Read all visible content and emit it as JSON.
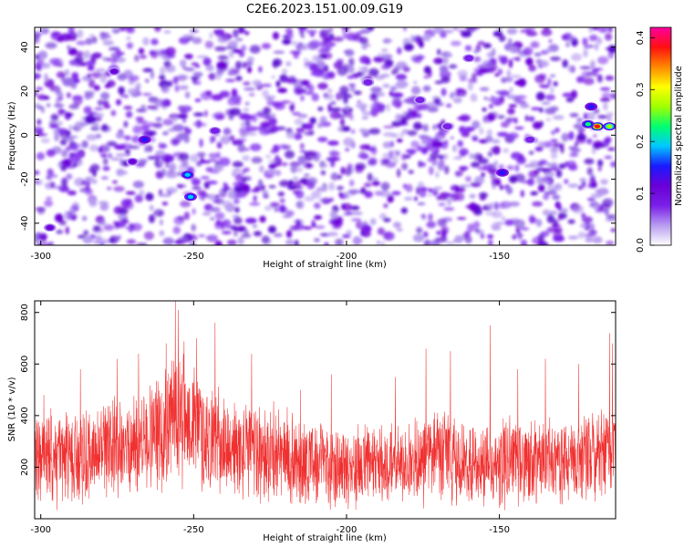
{
  "title": "C2E6.2023.151.00.09.G19",
  "colors": {
    "snr_line": "#f03030",
    "colormap": [
      "#ffffff",
      "#b89cf0",
      "#7a1fe8",
      "#6a00d8",
      "#1a1aff",
      "#00c8ff",
      "#00ff70",
      "#a0ff00",
      "#ffff00",
      "#ff8800",
      "#ff1010",
      "#ff00a0"
    ]
  },
  "chart_data": [
    {
      "type": "heatmap",
      "xlabel": "Height of straight line (km)",
      "ylabel": "Frequency (Hz)",
      "xlim": [
        -302,
        -112
      ],
      "ylim": [
        -50,
        49
      ],
      "xticks": [
        -300,
        -250,
        -200,
        -150
      ],
      "yticks": [
        -40,
        -20,
        0,
        20,
        40
      ],
      "colorbar": {
        "label": "Normalized spectral amplitude",
        "range": [
          0,
          0.42
        ],
        "ticks": [
          0.0,
          0.1,
          0.2,
          0.3,
          0.4
        ],
        "tick_labels": [
          "0.0",
          "0.1",
          "0.2",
          "0.3",
          "0.4"
        ]
      },
      "hotspots": [
        {
          "x": -118,
          "y": 4,
          "value": 0.38
        },
        {
          "x": -114,
          "y": 4,
          "value": 0.26
        },
        {
          "x": -121,
          "y": 5,
          "value": 0.22
        },
        {
          "x": -252,
          "y": -18,
          "value": 0.2
        },
        {
          "x": -251,
          "y": -28,
          "value": 0.18
        },
        {
          "x": -149,
          "y": -17,
          "value": 0.16
        },
        {
          "x": -266,
          "y": -2,
          "value": 0.15
        },
        {
          "x": -120,
          "y": 13,
          "value": 0.15
        },
        {
          "x": -276,
          "y": 29,
          "value": 0.12
        },
        {
          "x": -297,
          "y": -42,
          "value": 0.1
        },
        {
          "x": -270,
          "y": -12,
          "value": 0.1
        },
        {
          "x": -193,
          "y": 24,
          "value": 0.09
        },
        {
          "x": -176,
          "y": 16,
          "value": 0.09
        },
        {
          "x": -167,
          "y": 4,
          "value": 0.09
        },
        {
          "x": -160,
          "y": 35,
          "value": 0.09
        },
        {
          "x": -140,
          "y": -2,
          "value": 0.09
        },
        {
          "x": -243,
          "y": 2,
          "value": 0.09
        }
      ]
    },
    {
      "type": "line",
      "name": "",
      "xlabel": "Height of straight line (km)",
      "ylabel": "SNR (10 * v/v)",
      "xlim": [
        -302,
        -112
      ],
      "ylim": [
        0,
        845
      ],
      "xticks": [
        -300,
        -250,
        -200,
        -150
      ],
      "yticks": [
        200,
        400,
        600,
        800
      ],
      "envelope": {
        "x": [
          -302,
          -295,
          -290,
          -285,
          -280,
          -275,
          -270,
          -265,
          -260,
          -257,
          -255,
          -253,
          -250,
          -247,
          -245,
          -240,
          -235,
          -230,
          -225,
          -220,
          -215,
          -210,
          -205,
          -200,
          -195,
          -190,
          -185,
          -180,
          -175,
          -170,
          -165,
          -160,
          -155,
          -150,
          -145,
          -140,
          -135,
          -130,
          -125,
          -120,
          -116,
          -112
        ],
        "high": [
          400,
          420,
          400,
          430,
          440,
          460,
          470,
          520,
          580,
          640,
          700,
          660,
          600,
          560,
          520,
          470,
          440,
          460,
          440,
          420,
          400,
          380,
          380,
          360,
          360,
          370,
          380,
          360,
          400,
          420,
          400,
          380,
          360,
          380,
          400,
          390,
          380,
          390,
          400,
          410,
          430,
          440
        ],
        "low": [
          60,
          50,
          60,
          60,
          70,
          80,
          90,
          100,
          120,
          140,
          150,
          140,
          130,
          110,
          100,
          90,
          80,
          70,
          60,
          60,
          50,
          50,
          50,
          40,
          40,
          40,
          50,
          50,
          60,
          60,
          50,
          50,
          40,
          50,
          60,
          50,
          60,
          60,
          60,
          70,
          80,
          90
        ]
      },
      "peaks": [
        {
          "x": -256,
          "y": 845
        },
        {
          "x": -255,
          "y": 810
        },
        {
          "x": -243,
          "y": 760
        },
        {
          "x": -249,
          "y": 700
        },
        {
          "x": -259,
          "y": 680
        },
        {
          "x": -231,
          "y": 640
        },
        {
          "x": -153,
          "y": 750
        },
        {
          "x": -114,
          "y": 720
        },
        {
          "x": -113,
          "y": 680
        },
        {
          "x": -174,
          "y": 660
        },
        {
          "x": -166,
          "y": 650
        },
        {
          "x": -135,
          "y": 620
        },
        {
          "x": -275,
          "y": 620
        },
        {
          "x": -268,
          "y": 640
        },
        {
          "x": -287,
          "y": 580
        },
        {
          "x": -205,
          "y": 560
        },
        {
          "x": -184,
          "y": 550
        },
        {
          "x": -144,
          "y": 580
        },
        {
          "x": -124,
          "y": 600
        },
        {
          "x": -299,
          "y": 480
        },
        {
          "x": -215,
          "y": 500
        }
      ]
    }
  ]
}
